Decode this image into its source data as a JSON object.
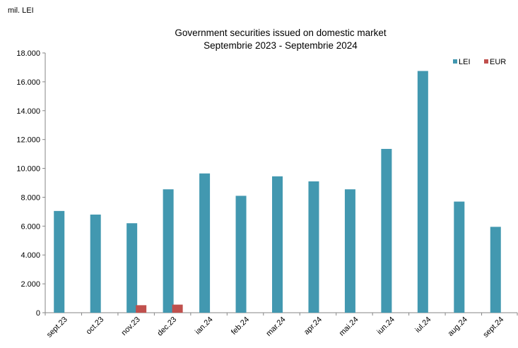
{
  "unit_label": "mil. LEI",
  "chart_data": {
    "type": "bar",
    "title": "Government securities issued on domestic market",
    "subtitle": "Septembrie 2023 - Septembrie 2024",
    "xlabel": "",
    "ylabel": "",
    "ylim": [
      0,
      18000
    ],
    "yticks": [
      "0",
      "2.000",
      "4.000",
      "6.000",
      "8.000",
      "10.000",
      "12.000",
      "14.000",
      "16.000",
      "18.000"
    ],
    "categories": [
      "sept.23",
      "oct.23",
      "nov.23",
      "dec.23",
      "ian.24",
      "feb.24",
      "mar.24",
      "apr.24",
      "mai.24",
      "iun.24",
      "iul.24",
      "aug.24",
      "sept.24"
    ],
    "series": [
      {
        "name": "LEI",
        "color": "#4298B0",
        "values": [
          7050,
          6800,
          6200,
          8550,
          9650,
          8100,
          9450,
          9100,
          8550,
          11350,
          16750,
          7700,
          5950
        ]
      },
      {
        "name": "EUR",
        "color": "#C0504D",
        "values": [
          0,
          0,
          520,
          560,
          0,
          0,
          0,
          0,
          0,
          0,
          0,
          0,
          0
        ]
      }
    ],
    "legend_position": "top-right",
    "grid": false
  }
}
